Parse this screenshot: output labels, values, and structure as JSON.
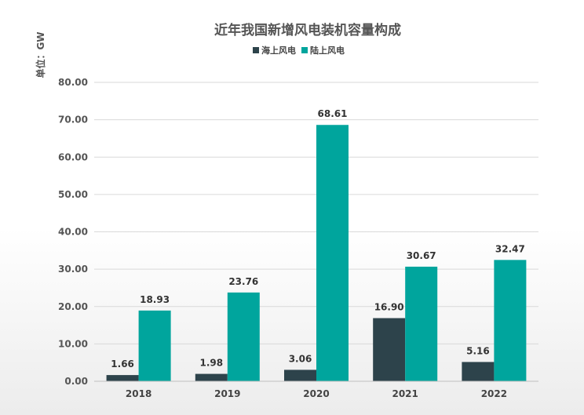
{
  "chart_data": {
    "type": "bar",
    "title": "近年我国新增风电装机容量构成",
    "unit_label": "单位：GW",
    "categories": [
      "2018",
      "2019",
      "2020",
      "2021",
      "2022"
    ],
    "series": [
      {
        "name": "海上风电",
        "color": "#2d434b",
        "values": [
          1.66,
          1.98,
          3.06,
          16.9,
          5.16
        ]
      },
      {
        "name": "陆上风电",
        "color": "#00a59d",
        "values": [
          18.93,
          23.76,
          68.61,
          30.67,
          32.47
        ]
      }
    ],
    "ylim": [
      0,
      80
    ],
    "yticks": [
      "0.00",
      "10.00",
      "20.00",
      "30.00",
      "40.00",
      "50.00",
      "60.00",
      "70.00",
      "80.00"
    ],
    "grid": true,
    "legend_position": "top-center"
  }
}
